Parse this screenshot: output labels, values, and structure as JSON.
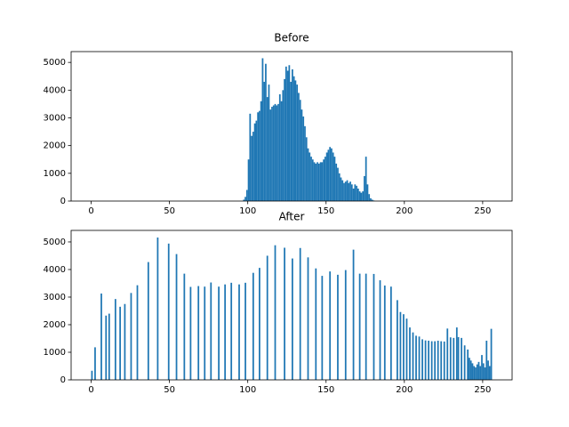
{
  "chart_data": [
    {
      "type": "histogram",
      "title": "Before",
      "color": "#1f77b4",
      "bins": [
        0,
        1,
        2,
        3,
        4,
        5,
        6,
        7,
        8,
        9,
        10,
        11,
        12,
        13,
        14,
        15,
        16,
        17,
        18,
        19,
        20,
        21,
        22,
        23,
        24,
        25,
        26,
        27,
        28,
        29,
        30,
        31,
        32,
        33,
        34,
        35,
        36,
        37,
        38,
        39,
        40,
        41,
        42,
        43,
        44,
        45,
        46,
        47,
        48,
        49,
        50,
        51,
        52,
        53,
        54,
        55,
        56,
        57,
        58,
        59,
        60,
        61,
        62,
        63,
        64,
        65,
        66,
        67,
        68,
        69,
        70,
        71,
        72,
        73,
        74,
        75,
        76,
        77,
        78,
        79,
        80,
        81,
        82,
        83,
        84,
        85,
        86,
        87,
        88,
        89,
        90,
        91,
        92,
        93,
        94,
        95,
        96,
        97,
        98,
        99,
        100,
        101,
        102,
        103,
        104,
        105,
        106,
        107,
        108,
        109,
        110,
        111,
        112,
        113,
        114,
        115,
        116,
        117,
        118,
        119,
        120,
        121,
        122,
        123,
        124,
        125,
        126,
        127,
        128,
        129,
        130,
        131,
        132,
        133,
        134,
        135,
        136,
        137,
        138,
        139,
        140,
        141,
        142,
        143,
        144,
        145,
        146,
        147,
        148,
        149,
        150,
        151,
        152,
        153,
        154,
        155,
        156,
        157,
        158,
        159,
        160,
        161,
        162,
        163,
        164,
        165,
        166,
        167,
        168,
        169,
        170,
        171,
        172,
        173,
        174,
        175,
        176,
        177,
        178,
        179,
        180,
        181,
        182,
        183,
        184,
        185,
        186,
        187,
        188,
        189,
        190,
        191,
        192,
        193,
        194,
        195,
        196,
        197,
        198,
        199,
        200,
        201,
        202,
        203,
        204,
        205,
        206,
        207,
        208,
        209,
        210,
        211,
        212,
        213,
        214,
        215,
        216,
        217,
        218,
        219,
        220,
        221,
        222,
        223,
        224,
        225,
        226,
        227,
        228,
        229,
        230,
        231,
        232,
        233,
        234,
        235,
        236,
        237,
        238,
        239,
        240,
        241,
        242,
        243,
        244,
        245,
        246,
        247,
        248,
        249,
        250,
        251,
        252,
        253,
        254,
        255,
        256
      ],
      "counts": [
        0,
        0,
        0,
        0,
        0,
        0,
        0,
        0,
        0,
        0,
        0,
        0,
        0,
        0,
        0,
        0,
        0,
        0,
        0,
        0,
        0,
        0,
        0,
        0,
        0,
        0,
        0,
        0,
        0,
        0,
        0,
        0,
        0,
        0,
        0,
        0,
        0,
        0,
        0,
        0,
        0,
        0,
        0,
        0,
        0,
        0,
        0,
        0,
        0,
        0,
        0,
        0,
        0,
        0,
        0,
        0,
        0,
        0,
        0,
        0,
        0,
        0,
        0,
        0,
        0,
        0,
        0,
        0,
        0,
        0,
        0,
        0,
        0,
        0,
        0,
        0,
        0,
        0,
        0,
        0,
        0,
        0,
        0,
        0,
        0,
        0,
        0,
        0,
        0,
        0,
        0,
        0,
        0,
        0,
        0,
        0,
        0,
        50,
        150,
        400,
        1500,
        3150,
        2350,
        2500,
        2800,
        2900,
        3200,
        3250,
        3600,
        5150,
        4300,
        4950,
        3750,
        4200,
        3300,
        3400,
        3450,
        3500,
        3450,
        3500,
        3850,
        3600,
        4000,
        4400,
        4850,
        4700,
        4900,
        4300,
        4750,
        4500,
        4350,
        4200,
        3900,
        3650,
        3300,
        3050,
        2700,
        2300,
        1900,
        1750,
        1600,
        1500,
        1400,
        1350,
        1400,
        1350,
        1400,
        1400,
        1500,
        1600,
        1750,
        1850,
        1950,
        1900,
        1750,
        1600,
        1350,
        1200,
        1000,
        850,
        750,
        650,
        700,
        750,
        650,
        700,
        600,
        450,
        600,
        550,
        450,
        350,
        300,
        350,
        900,
        1600,
        600,
        250,
        100,
        50,
        20,
        0,
        0,
        0,
        0,
        0,
        0,
        0,
        0,
        0,
        0,
        0,
        0,
        0,
        0,
        0,
        0,
        0,
        0,
        0,
        0,
        0,
        0,
        0,
        0,
        0,
        0,
        0,
        0,
        0,
        0,
        0,
        0,
        0,
        0,
        0,
        0,
        0,
        0,
        0,
        0,
        0,
        0,
        0,
        0,
        0,
        0,
        0,
        0,
        0,
        0,
        0,
        0,
        0,
        0,
        0,
        0,
        0,
        0,
        0,
        0,
        0,
        0,
        0,
        0,
        0,
        0,
        0,
        0,
        0,
        0,
        0,
        0,
        0,
        0,
        0
      ],
      "xlim": [
        -12.8,
        268.8
      ],
      "ylim": [
        0,
        5390
      ],
      "xticks": [
        0,
        50,
        100,
        150,
        200,
        250
      ],
      "yticks": [
        0,
        1000,
        2000,
        3000,
        4000,
        5000
      ]
    },
    {
      "type": "histogram",
      "title": "After",
      "color": "#1f77b4",
      "bins": [
        0,
        1,
        2,
        3,
        4,
        5,
        6,
        7,
        8,
        9,
        10,
        11,
        12,
        13,
        14,
        15,
        16,
        17,
        18,
        19,
        20,
        21,
        22,
        23,
        24,
        25,
        26,
        27,
        28,
        29,
        30,
        31,
        32,
        33,
        34,
        35,
        36,
        37,
        38,
        39,
        40,
        41,
        42,
        43,
        44,
        45,
        46,
        47,
        48,
        49,
        50,
        51,
        52,
        53,
        54,
        55,
        56,
        57,
        58,
        59,
        60,
        61,
        62,
        63,
        64,
        65,
        66,
        67,
        68,
        69,
        70,
        71,
        72,
        73,
        74,
        75,
        76,
        77,
        78,
        79,
        80,
        81,
        82,
        83,
        84,
        85,
        86,
        87,
        88,
        89,
        90,
        91,
        92,
        93,
        94,
        95,
        96,
        97,
        98,
        99,
        100,
        101,
        102,
        103,
        104,
        105,
        106,
        107,
        108,
        109,
        110,
        111,
        112,
        113,
        114,
        115,
        116,
        117,
        118,
        119,
        120,
        121,
        122,
        123,
        124,
        125,
        126,
        127,
        128,
        129,
        130,
        131,
        132,
        133,
        134,
        135,
        136,
        137,
        138,
        139,
        140,
        141,
        142,
        143,
        144,
        145,
        146,
        147,
        148,
        149,
        150,
        151,
        152,
        153,
        154,
        155,
        156,
        157,
        158,
        159,
        160,
        161,
        162,
        163,
        164,
        165,
        166,
        167,
        168,
        169,
        170,
        171,
        172,
        173,
        174,
        175,
        176,
        177,
        178,
        179,
        180,
        181,
        182,
        183,
        184,
        185,
        186,
        187,
        188,
        189,
        190,
        191,
        192,
        193,
        194,
        195,
        196,
        197,
        198,
        199,
        200,
        201,
        202,
        203,
        204,
        205,
        206,
        207,
        208,
        209,
        210,
        211,
        212,
        213,
        214,
        215,
        216,
        217,
        218,
        219,
        220,
        221,
        222,
        223,
        224,
        225,
        226,
        227,
        228,
        229,
        230,
        231,
        232,
        233,
        234,
        235,
        236,
        237,
        238,
        239,
        240,
        241,
        242,
        243,
        244,
        245,
        246,
        247,
        248,
        249,
        250,
        251,
        252,
        253,
        254,
        255,
        256
      ],
      "counts": [
        330,
        0,
        1180,
        0,
        0,
        0,
        3130,
        0,
        0,
        2330,
        0,
        2400,
        0,
        0,
        0,
        2930,
        0,
        0,
        2650,
        0,
        0,
        2750,
        0,
        0,
        0,
        3150,
        0,
        0,
        0,
        3430,
        0,
        0,
        0,
        0,
        0,
        0,
        4270,
        0,
        0,
        0,
        0,
        0,
        5160,
        0,
        0,
        0,
        0,
        0,
        0,
        4940,
        0,
        0,
        0,
        0,
        4560,
        0,
        0,
        0,
        0,
        3850,
        0,
        0,
        0,
        3370,
        0,
        0,
        0,
        0,
        3400,
        0,
        0,
        0,
        3380,
        0,
        0,
        0,
        3530,
        0,
        0,
        0,
        0,
        3380,
        0,
        0,
        0,
        3460,
        0,
        0,
        0,
        3520,
        0,
        0,
        0,
        0,
        3460,
        0,
        0,
        0,
        3520,
        0,
        0,
        0,
        0,
        3880,
        0,
        0,
        0,
        4060,
        0,
        0,
        0,
        0,
        4500,
        0,
        0,
        0,
        0,
        4880,
        0,
        0,
        0,
        0,
        0,
        4790,
        0,
        0,
        0,
        0,
        4400,
        0,
        0,
        0,
        0,
        4780,
        0,
        0,
        0,
        0,
        4440,
        0,
        0,
        0,
        0,
        4040,
        0,
        0,
        0,
        3770,
        0,
        0,
        0,
        0,
        3930,
        0,
        0,
        0,
        0,
        3810,
        0,
        0,
        0,
        0,
        3980,
        0,
        0,
        0,
        0,
        4720,
        0,
        0,
        0,
        3850,
        0,
        0,
        0,
        3850,
        0,
        0,
        0,
        0,
        3840,
        0,
        0,
        0,
        3610,
        0,
        0,
        3420,
        0,
        0,
        0,
        3380,
        0,
        0,
        0,
        2890,
        0,
        2460,
        0,
        2380,
        0,
        2220,
        0,
        1900,
        0,
        1720,
        0,
        1600,
        0,
        1570,
        0,
        1470,
        0,
        1430,
        0,
        1420,
        0,
        1400,
        0,
        1400,
        0,
        1420,
        0,
        1400,
        0,
        1390,
        0,
        1860,
        0,
        1540,
        0,
        1520,
        0,
        1900,
        1550,
        0,
        1520,
        0,
        1250,
        0,
        1100,
        800,
        700,
        600,
        500,
        450,
        560,
        650,
        500,
        900,
        600,
        450,
        1420,
        700,
        500,
        1850
      ],
      "xlim": [
        -12.8,
        268.8
      ],
      "ylim": [
        0,
        5418
      ],
      "xticks": [
        0,
        50,
        100,
        150,
        200,
        250
      ],
      "yticks": [
        0,
        1000,
        2000,
        3000,
        4000,
        5000
      ]
    }
  ]
}
